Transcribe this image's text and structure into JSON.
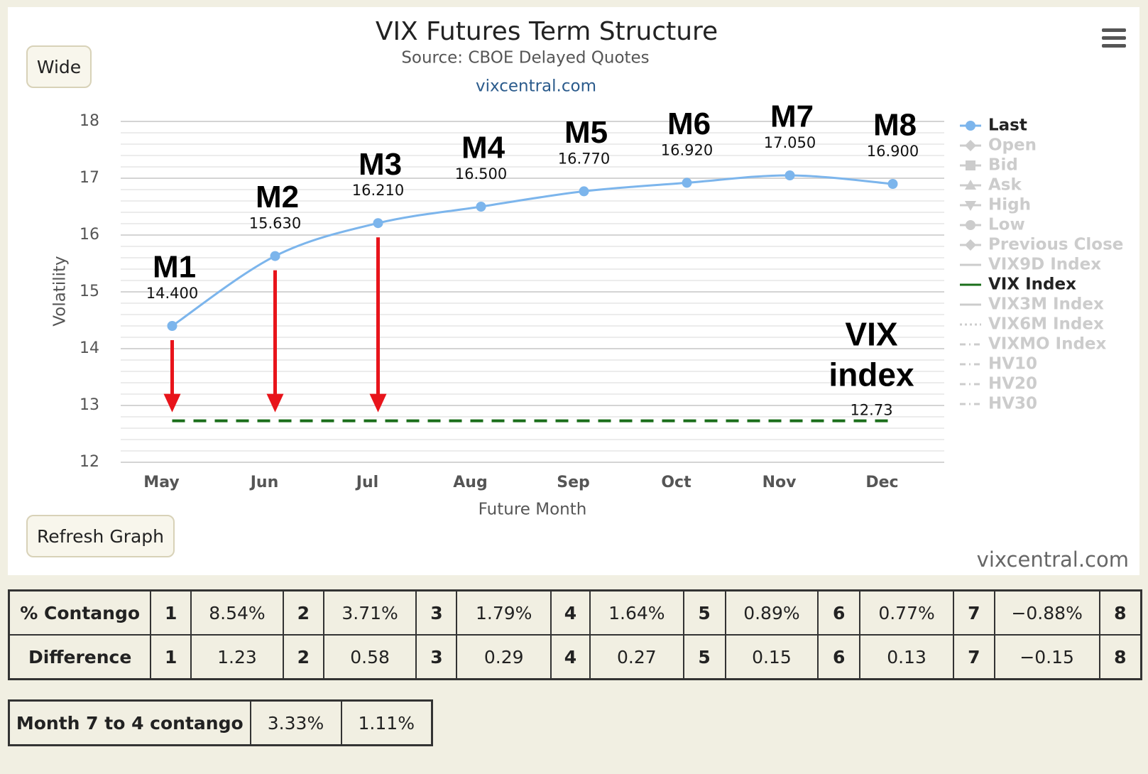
{
  "buttons": {
    "wide": "Wide",
    "refresh": "Refresh Graph"
  },
  "chart_data": {
    "type": "line",
    "title": "VIX Futures Term Structure",
    "subtitle": "Source: CBOE Delayed Quotes",
    "credit": "vixcentral.com",
    "watermark": "vixcentral.com",
    "xlabel": "Future Month",
    "ylabel": "Volatility",
    "categories": [
      "May",
      "Jun",
      "Jul",
      "Aug",
      "Sep",
      "Oct",
      "Nov",
      "Dec"
    ],
    "month_labels": [
      "M1",
      "M2",
      "M3",
      "M4",
      "M5",
      "M6",
      "M7",
      "M8"
    ],
    "series": [
      {
        "name": "Last",
        "color": "#7cb5ec",
        "values": [
          14.4,
          15.63,
          16.21,
          16.5,
          16.77,
          16.92,
          17.05,
          16.9
        ],
        "value_labels": [
          "14.400",
          "15.630",
          "16.210",
          "16.500",
          "16.770",
          "16.920",
          "17.050",
          "16.900"
        ]
      }
    ],
    "reference_line": {
      "name": "VIX Index",
      "value": 12.73,
      "color": "#1a6e1a",
      "label": "VIX index"
    },
    "arrow_categories": [
      "May",
      "Jun",
      "Jul"
    ],
    "arrow_color": "#e8141b",
    "ylim": [
      12,
      18
    ],
    "yticks": [
      12,
      13,
      14,
      15,
      16,
      17,
      18
    ],
    "grid": true,
    "minor_grid_per_tick": 5,
    "legend_position": "right",
    "legend": [
      {
        "name": "Last",
        "visible": true,
        "color": "#7cb5ec",
        "symbol": "circle"
      },
      {
        "name": "Open",
        "visible": false,
        "symbol": "diamond"
      },
      {
        "name": "Bid",
        "visible": false,
        "symbol": "square"
      },
      {
        "name": "Ask",
        "visible": false,
        "symbol": "triangle"
      },
      {
        "name": "High",
        "visible": false,
        "symbol": "triangle-down"
      },
      {
        "name": "Low",
        "visible": false,
        "symbol": "circle"
      },
      {
        "name": "Previous Close",
        "visible": false,
        "symbol": "diamond"
      },
      {
        "name": "VIX9D Index",
        "visible": false,
        "symbol": "line"
      },
      {
        "name": "VIX Index",
        "visible": true,
        "color": "#1a6e1a",
        "symbol": "line"
      },
      {
        "name": "VIX3M Index",
        "visible": false,
        "symbol": "line"
      },
      {
        "name": "VIX6M Index",
        "visible": false,
        "symbol": "dot"
      },
      {
        "name": "VIXMO Index",
        "visible": false,
        "symbol": "dashdot"
      },
      {
        "name": "HV10",
        "visible": false,
        "symbol": "dashdot"
      },
      {
        "name": "HV20",
        "visible": false,
        "symbol": "dashdot"
      },
      {
        "name": "HV30",
        "visible": false,
        "symbol": "dashdot"
      }
    ]
  },
  "contango_table": {
    "rows": [
      [
        "% Contango",
        "1",
        "8.54%",
        "2",
        "3.71%",
        "3",
        "1.79%",
        "4",
        "1.64%",
        "5",
        "0.89%",
        "6",
        "0.77%",
        "7",
        "−0.88%",
        "8"
      ],
      [
        "Difference",
        "1",
        "1.23",
        "2",
        "0.58",
        "3",
        "0.29",
        "4",
        "0.27",
        "5",
        "0.15",
        "6",
        "0.13",
        "7",
        "−0.15",
        "8"
      ]
    ]
  },
  "month_table": {
    "rows": [
      [
        "Month 7 to 4 contango",
        "3.33%",
        "1.11%"
      ]
    ]
  }
}
